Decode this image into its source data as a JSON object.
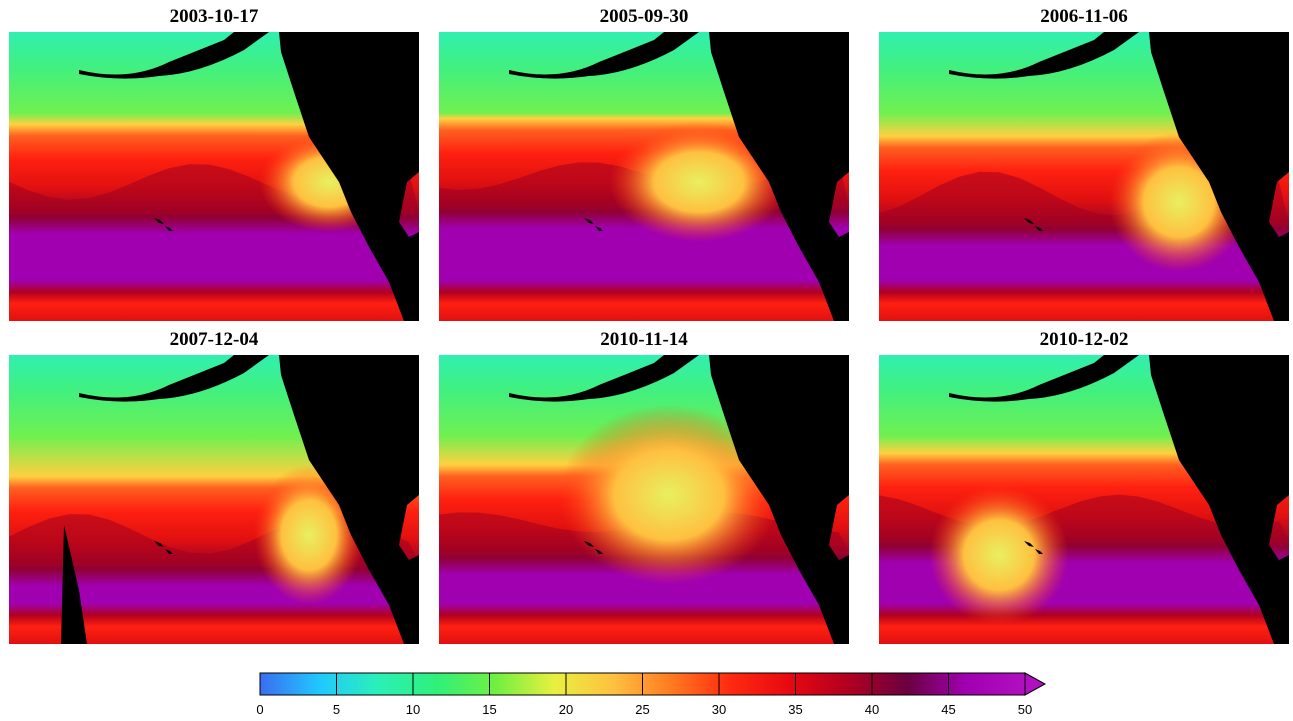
{
  "panels": [
    {
      "title": "2003-10-17",
      "variant": 0
    },
    {
      "title": "2005-09-30",
      "variant": 1
    },
    {
      "title": "2006-11-06",
      "variant": 2
    },
    {
      "title": "2007-12-04",
      "variant": 3
    },
    {
      "title": "2010-11-14",
      "variant": 4
    },
    {
      "title": "2010-12-02",
      "variant": 5
    }
  ],
  "colorbar": {
    "ticks": [
      "0",
      "5",
      "10",
      "15",
      "20",
      "25",
      "30",
      "35",
      "40",
      "45",
      "50"
    ],
    "min": 0,
    "max": 50,
    "extend": "max",
    "colors": [
      "#3a6df0",
      "#20c8ff",
      "#2af0b8",
      "#30f07a",
      "#70f040",
      "#e8f040",
      "#ffc040",
      "#ff7a20",
      "#ff2a10",
      "#e80810",
      "#b00020",
      "#6a0040",
      "#a000b0",
      "#b010c0"
    ]
  },
  "colors": {
    "land": "#000000",
    "ocean_low": "#a000b0"
  }
}
